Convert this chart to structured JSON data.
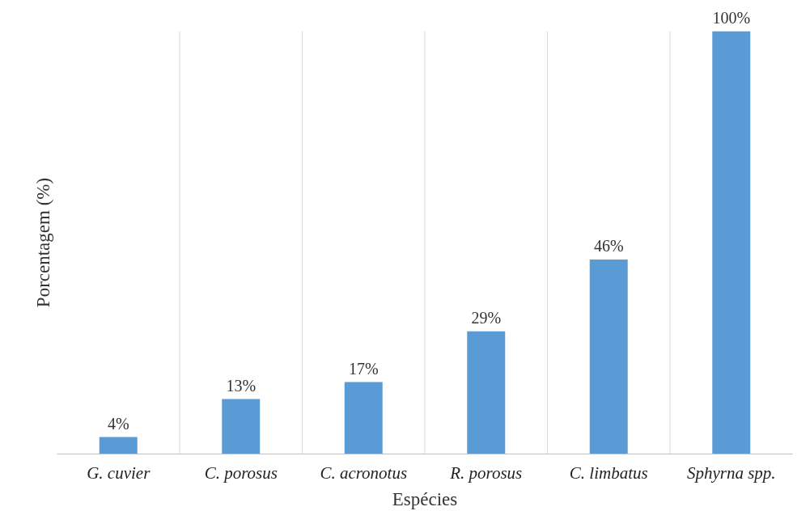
{
  "chart_data": {
    "type": "bar",
    "xlabel": "Espécies",
    "ylabel": "Porcentagem (%)",
    "categories": [
      "G. cuvier",
      "C. porosus",
      "C. acronotus",
      "R. porosus",
      "C. limbatus",
      "Sphyrna spp."
    ],
    "values": [
      4,
      13,
      17,
      29,
      46,
      100
    ],
    "value_labels": [
      "4%",
      "13%",
      "17%",
      "29%",
      "46%",
      "100%"
    ],
    "color": "#5b9bd5",
    "grid": "x",
    "tick_labels": "x"
  }
}
